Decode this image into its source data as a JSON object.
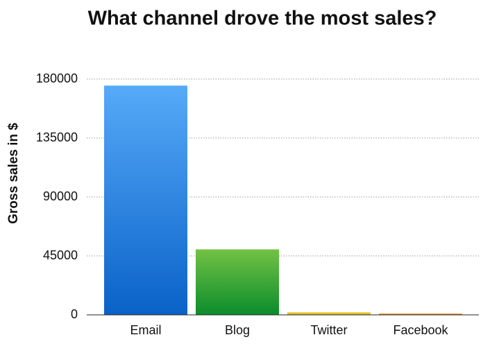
{
  "chart_data": {
    "type": "bar",
    "title": "What channel drove the most sales?",
    "y_label": "Gross sales in $",
    "categories": [
      "Email",
      "Blog",
      "Twitter",
      "Facebook"
    ],
    "values": [
      175000,
      50000,
      2000,
      1000
    ],
    "gradients": [
      [
        "#56aaf8",
        "#0a62c8"
      ],
      [
        "#72c244",
        "#0b8c2c"
      ],
      [
        "#f0d04a",
        "#d8b018"
      ],
      [
        "#f4a04a",
        "#e0701a"
      ]
    ],
    "ylim": [
      0,
      180000
    ],
    "yticks": [
      0,
      45000,
      90000,
      135000,
      180000
    ],
    "grid": true
  }
}
